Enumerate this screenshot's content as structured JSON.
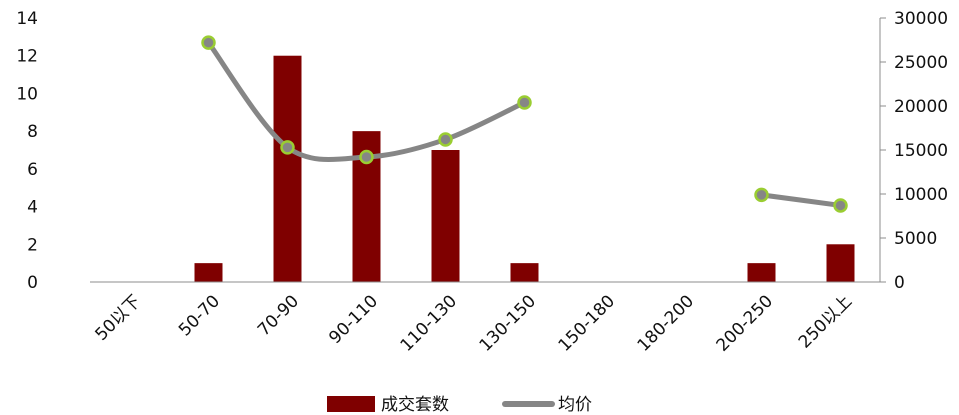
{
  "chart_data": {
    "type": "bar",
    "categories": [
      "50以下",
      "50-70",
      "70-90",
      "90-110",
      "110-130",
      "130-150",
      "150-180",
      "180-200",
      "200-250",
      "250以上"
    ],
    "series": [
      {
        "name": "成交套数",
        "type": "bar",
        "axis": "left",
        "color": "#7f0000",
        "values": [
          0,
          1,
          12,
          8,
          7,
          1,
          0,
          0,
          1,
          2
        ]
      },
      {
        "name": "均价",
        "type": "line",
        "axis": "right",
        "color": "#868686",
        "marker_color": "#9acd32",
        "values": [
          null,
          27200,
          15300,
          14200,
          16200,
          20400,
          null,
          null,
          9900,
          8700
        ]
      }
    ],
    "ylim_left": [
      0,
      14
    ],
    "yticks_left": [
      "0",
      "2",
      "4",
      "6",
      "8",
      "10",
      "12",
      "14"
    ],
    "ylim_right": [
      0,
      30000
    ],
    "yticks_right": [
      "0",
      "5000",
      "10000",
      "15000",
      "20000",
      "25000",
      "30000"
    ],
    "grid": false,
    "legend_position": "bottom"
  }
}
